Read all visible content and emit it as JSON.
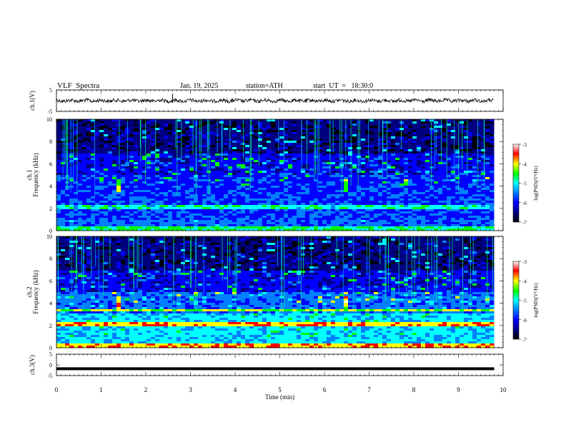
{
  "header": {
    "title": "VLF  Spectra",
    "date": "Jan. 19, 2025",
    "station": "station=ATH",
    "start": "start  UT  =   18:30:0"
  },
  "chart_data": [
    {
      "type": "line",
      "panel": "ch1-waveform",
      "ylabel": "ch.1(V)",
      "ylim": [
        -5,
        5
      ],
      "y_ticks": [
        "5",
        "-5"
      ],
      "xlim": [
        0,
        10
      ],
      "data_extent_min": 9.8,
      "baseline": 0,
      "spikes": [
        {
          "x": 2.6,
          "y": 3.2
        },
        {
          "x": 3.93,
          "y": 0.8
        },
        {
          "x": 2.1,
          "y": 0.6
        },
        {
          "x": 5.6,
          "y": 0.7
        }
      ]
    },
    {
      "type": "heatmap",
      "panel": "ch1-spectrogram",
      "ylabel": "ch.1\nFrequency (kHz)",
      "ylim": [
        0,
        10
      ],
      "y_ticks": [
        "0",
        "2",
        "4",
        "6",
        "8",
        "10"
      ],
      "xlim": [
        0,
        10
      ],
      "data_extent_min": 9.8,
      "tone_bursts_min": [
        1.32,
        6.42
      ],
      "colorbar": {
        "label": "log(PSD)(V²/Hz)",
        "min": -7,
        "max": -3,
        "ticks": [
          "-3",
          "-4",
          "-5",
          "-6",
          "-7"
        ]
      }
    },
    {
      "type": "heatmap",
      "panel": "ch2-spectrogram",
      "ylabel": "ch.2\nFrequency (kHz)",
      "ylim": [
        0,
        10
      ],
      "y_ticks": [
        "0",
        "2",
        "4",
        "6",
        "8",
        "10"
      ],
      "xlim": [
        0,
        10
      ],
      "data_extent_min": 9.8,
      "tone_bursts_min": [
        1.32,
        6.42
      ],
      "colorbar": {
        "label": "log(PSD)(V²/Hz)",
        "min": -7,
        "max": -3,
        "ticks": [
          "-3",
          "-4",
          "-5",
          "-6",
          "-7"
        ]
      }
    },
    {
      "type": "line",
      "panel": "ch3-waveform",
      "ylabel": "ch.3(V)",
      "ylim": [
        -5,
        5
      ],
      "y_ticks": [
        "5",
        "0",
        "-5"
      ],
      "xlim": [
        0,
        10
      ],
      "data_extent_min": 9.8,
      "baseline": -1.8,
      "xlabel": "Time  (min)",
      "x_ticks": [
        "0",
        "1",
        "2",
        "3",
        "4",
        "5",
        "6",
        "7",
        "8",
        "9",
        "10"
      ]
    }
  ],
  "colors": {
    "colormap": [
      "#000000",
      "#000080",
      "#0000ff",
      "#0080ff",
      "#00ffff",
      "#00ff00",
      "#ffff00",
      "#ff0000",
      "#ffffff"
    ]
  }
}
